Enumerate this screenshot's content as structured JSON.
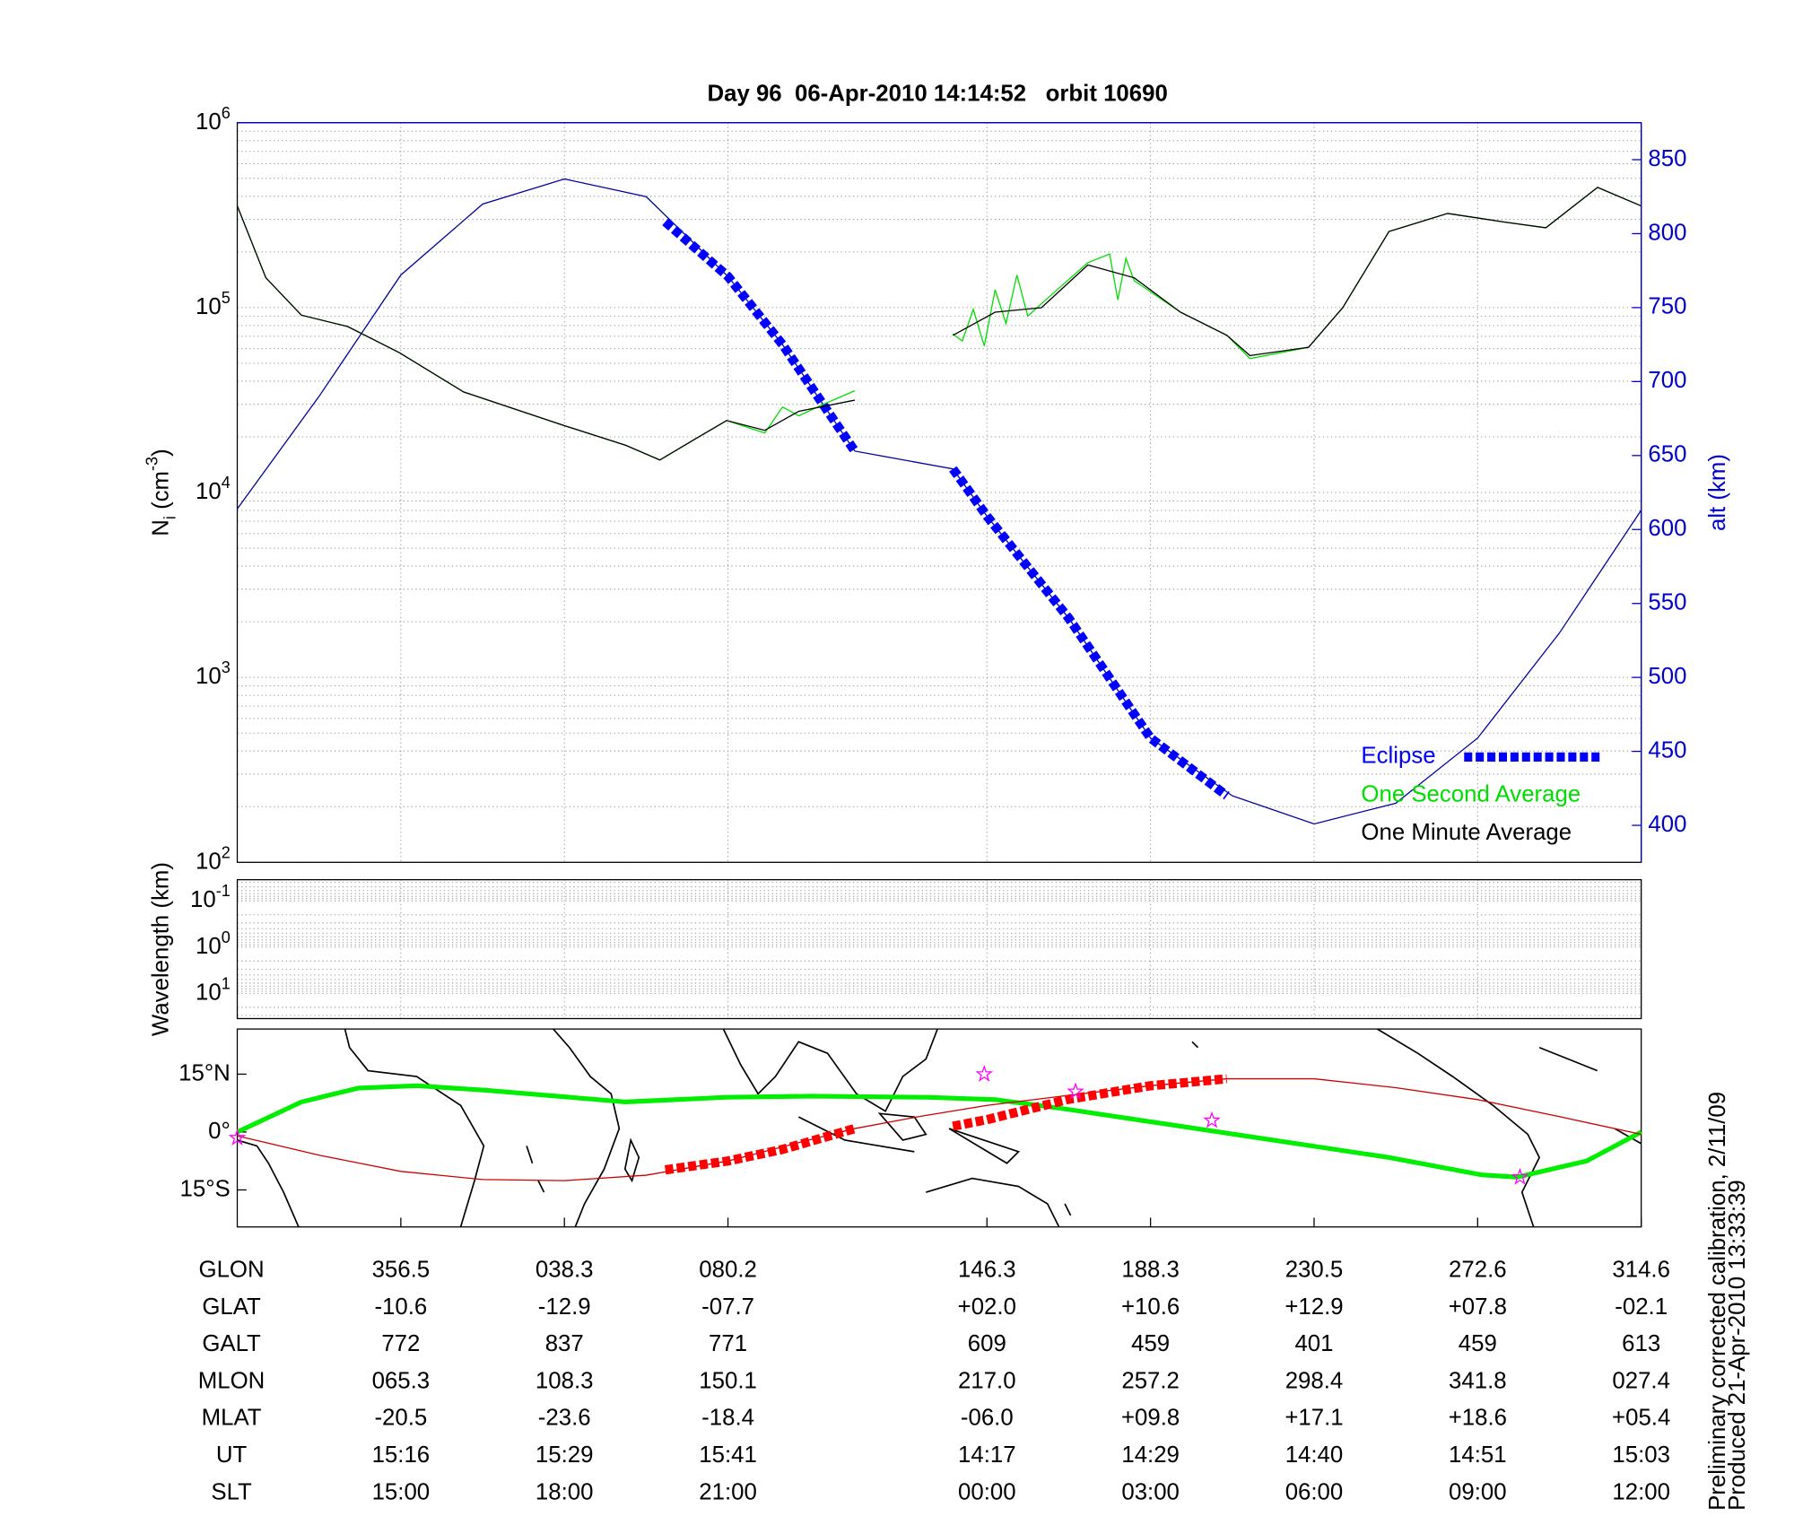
{
  "chart_data": [
    {
      "type": "line",
      "title": "Day 96  06-Apr-2010 14:14:52   orbit 10690",
      "ylabel": [
        "N",
        "i",
        " (cm",
        "-3",
        ")"
      ],
      "y2label": "alt (km)",
      "yscale": "log",
      "ylim": [
        100,
        1000000
      ],
      "yticks": [
        {
          "value": 100,
          "label": "10",
          "exponent": "2"
        },
        {
          "value": 1000,
          "label": "10",
          "exponent": "3"
        },
        {
          "value": 10000,
          "label": "10",
          "exponent": "4"
        },
        {
          "value": 100000,
          "label": "10",
          "exponent": "5"
        },
        {
          "value": 1000000,
          "label": "10",
          "exponent": "6"
        }
      ],
      "y2lim": [
        375,
        875
      ],
      "y2ticks": [
        400,
        450,
        500,
        550,
        600,
        650,
        700,
        750,
        800,
        850
      ],
      "y2color": "#0000cc",
      "xlim": [
        0,
        103
      ],
      "xticks": [
        12,
        24,
        36,
        55,
        67,
        79,
        91,
        103
      ],
      "grid": true,
      "minor_grid": true,
      "legend": "lower right",
      "series": [
        {
          "color": "#0000a0",
          "axis": "y2",
          "x": [
            0,
            6,
            12,
            18,
            24,
            30,
            36,
            40,
            45.3,
            52.5,
            55,
            61,
            67,
            73,
            79,
            85,
            91,
            97,
            103
          ],
          "values": [
            614,
            690,
            772,
            820,
            837,
            825,
            771,
            725,
            653,
            641,
            609,
            540,
            459,
            420,
            401,
            415,
            459,
            530,
            613
          ]
        },
        {
          "name": "Eclipse",
          "color": "#0000ff",
          "axis": "y2",
          "style": "dashed",
          "legend_sample": true,
          "x": [
            31.4,
            36,
            40,
            45.3,
            49,
            52.5,
            55,
            61,
            67,
            72.6
          ],
          "values": [
            808,
            771,
            725,
            653,
            null,
            641,
            609,
            540,
            459,
            420
          ]
        },
        {
          "name": "One Second Average",
          "color": "#00dd00",
          "x": [
            0,
            2.1,
            4.7,
            8.1,
            11.9,
            16.6,
            24,
            28.5,
            31,
            33.6,
            35.9,
            38.7,
            40,
            41.2,
            43,
            45.3,
            49,
            52.5,
            53.2,
            54,
            54.8,
            55.6,
            56.4,
            57.2,
            58,
            59,
            62.4,
            64,
            64.6,
            65.2,
            65.8,
            69.2,
            72.6,
            74.3,
            78.6,
            81.1,
            84.5,
            88.8,
            93,
            96,
            99.8,
            103
          ],
          "values": [
            355000,
            145000,
            91000,
            79000,
            57000,
            35000,
            23000,
            18000,
            15000,
            19500,
            24500,
            21000,
            29000,
            26000,
            30000,
            35500,
            null,
            72000,
            66000,
            98000,
            62000,
            125000,
            82000,
            150000,
            90000,
            105000,
            175000,
            195000,
            110000,
            185000,
            140000,
            94400,
            70800,
            53000,
            61000,
            100000,
            258000,
            323000,
            290000,
            270000,
            447000,
            355000
          ]
        },
        {
          "name": "One Minute Average",
          "color": "#000000",
          "x": [
            0,
            2.1,
            4.7,
            8.1,
            11.9,
            16.6,
            24,
            28.5,
            31,
            33.6,
            35.9,
            38.7,
            41.2,
            45.3,
            49,
            52.5,
            55.6,
            59,
            62.4,
            65.8,
            69.2,
            72.6,
            74.3,
            78.6,
            81.1,
            84.5,
            88.8,
            93,
            96,
            99.8,
            103
          ],
          "values": [
            355000,
            145000,
            91000,
            79000,
            57000,
            35000,
            23000,
            18000,
            15000,
            19500,
            24500,
            21700,
            27500,
            31600,
            null,
            70800,
            94400,
            100000,
            170000,
            145000,
            94400,
            70800,
            55000,
            61000,
            100000,
            258000,
            323000,
            290000,
            270000,
            447000,
            355000
          ]
        }
      ]
    },
    {
      "type": "line",
      "ylabel": "Wavelength (km)",
      "yscale": "log",
      "yreverse": true,
      "ylim": [
        0.035,
        35
      ],
      "yticks": [
        {
          "value": 0.1,
          "label": "10",
          "exponent": "-1"
        },
        {
          "value": 1,
          "label": "10",
          "exponent": "0"
        },
        {
          "value": 10,
          "label": "10",
          "exponent": "1"
        }
      ],
      "xlim": [
        0,
        103
      ],
      "xticks": [
        12,
        24,
        36,
        55,
        67,
        79,
        91,
        103
      ],
      "grid": true,
      "minor_grid": true,
      "series": []
    },
    {
      "type": "map",
      "ylim": [
        -24.6,
        26.7
      ],
      "yticks": [
        {
          "value": 15,
          "label": "15°N"
        },
        {
          "value": 0,
          "label": "0°"
        },
        {
          "value": -15,
          "label": "15°S"
        }
      ],
      "xlim": [
        0,
        103
      ],
      "xticks": [
        12,
        24,
        36,
        55,
        67,
        79,
        91,
        103
      ],
      "grid": false,
      "series": [
        {
          "color": "#00ee00",
          "width": 4,
          "x": [
            0,
            4.7,
            8.9,
            13.2,
            18.3,
            28.5,
            35.9,
            42.1,
            50.6,
            55.6,
            60.7,
            67.5,
            76,
            84.5,
            91.3,
            93.9,
            99,
            103
          ],
          "values": [
            0,
            7.8,
            11.4,
            12,
            10.8,
            7.8,
            9,
            9.3,
            9,
            8.4,
            6,
            2.4,
            -2.1,
            -6.6,
            -11.1,
            -11.7,
            -7.5,
            0
          ]
        },
        {
          "color": "#cc0000",
          "width": 1,
          "x": [
            0,
            6,
            12,
            18,
            24,
            30,
            36,
            42,
            45.3,
            50,
            55,
            61,
            67,
            72.6,
            79,
            85,
            91,
            97,
            103
          ],
          "values": [
            -1,
            -6,
            -10.2,
            -12.3,
            -12.6,
            -11.2,
            -7.5,
            -2,
            0.9,
            4,
            6.9,
            9.5,
            12,
            13.8,
            13.8,
            11.5,
            8.4,
            4,
            -0.6
          ]
        },
        {
          "color": "#ff0000",
          "style": "dashed",
          "x": [
            31.4,
            36,
            40,
            45.3,
            49,
            52.5,
            55,
            61,
            67,
            72.6
          ],
          "values": [
            -9.8,
            -7.5,
            -4.5,
            0.9,
            null,
            1.5,
            3.2,
            8.5,
            12,
            13.8
          ]
        },
        {
          "type": "stars",
          "color": "#ff00ff",
          "x": [
            0,
            54.8,
            61.5,
            71.5,
            94.1
          ],
          "values": [
            -1.5,
            15,
            10.5,
            3,
            -11.7
          ]
        }
      ]
    }
  ],
  "table": {
    "row_labels": [
      "GLON",
      "GLAT",
      "GALT",
      "MLON",
      "MLAT",
      "UT",
      "SLT"
    ],
    "rows": [
      [
        "356.5",
        "038.3",
        "080.2",
        "146.3",
        "188.3",
        "230.5",
        "272.6",
        "314.6"
      ],
      [
        "-10.6",
        "-12.9",
        "-07.7",
        "+02.0",
        "+10.6",
        "+12.9",
        "+07.8",
        "-02.1"
      ],
      [
        "772",
        "837",
        "771",
        "609",
        "459",
        "401",
        "459",
        "613"
      ],
      [
        "065.3",
        "108.3",
        "150.1",
        "217.0",
        "257.2",
        "298.4",
        "341.8",
        "027.4"
      ],
      [
        "-20.5",
        "-23.6",
        "-18.4",
        "-06.0",
        "+09.8",
        "+17.1",
        "+18.6",
        "+05.4"
      ],
      [
        "15:16",
        "15:29",
        "15:41",
        "14:17",
        "14:29",
        "14:40",
        "14:51",
        "15:03"
      ],
      [
        "15:00",
        "18:00",
        "21:00",
        "00:00",
        "03:00",
        "06:00",
        "09:00",
        "12:00"
      ]
    ]
  },
  "notes": [
    "Preliminary corrected calibration, 2/11/09",
    "Produced 21-Apr-2010 13:33:39"
  ]
}
